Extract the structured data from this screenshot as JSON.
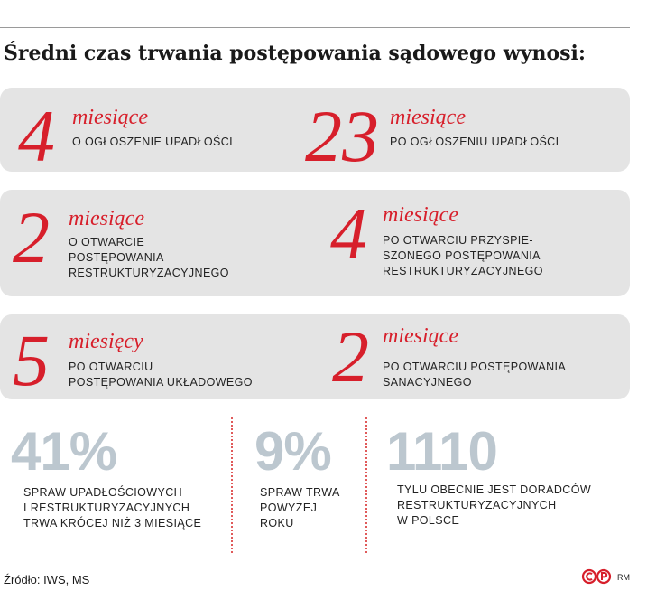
{
  "title": "Średni czas trwania postępowania sądowego wynosi:",
  "chart_data": {
    "type": "table",
    "durations": [
      {
        "value": "4",
        "unit": "miesiące",
        "lines": [
          "o ogłoszenie upadłości"
        ]
      },
      {
        "value": "23",
        "unit": "miesiące",
        "lines": [
          "po ogłoszeniu upadłości"
        ]
      },
      {
        "value": "2",
        "unit": "miesiące",
        "lines": [
          "o otwarcie",
          "postępowania",
          "restrukturyzacyjnego"
        ]
      },
      {
        "value": "4",
        "unit": "miesiące",
        "lines": [
          "po otwarciu przyspie-",
          "szonego postępowania",
          "restrukturyzacyjnego"
        ]
      },
      {
        "value": "5",
        "unit": "miesięcy",
        "lines": [
          "po otwarciu",
          "postępowania układowego"
        ]
      },
      {
        "value": "2",
        "unit": "miesiące",
        "lines": [
          "po otwarciu postępowania",
          "sanacyjnego"
        ]
      }
    ],
    "figures": [
      {
        "value": "41%",
        "lines": [
          "spraw upadłościowych",
          "i restrukturyzacyjnych",
          "trwa krócej niż 3 miesiące"
        ]
      },
      {
        "value": "9%",
        "lines": [
          "spraw trwa",
          "powyżej",
          "roku"
        ]
      },
      {
        "value": "1110",
        "lines": [
          "tylu obecnie jest doradców",
          "restrukturyzacyjnych",
          "w Polsce"
        ]
      }
    ]
  },
  "source": "Źródło: IWS, MS",
  "logo": {
    "text": "RM",
    "icon": "copyright-logo-icon",
    "color": "#d71f2b"
  },
  "colors": {
    "accent": "#d71f2b",
    "panel": "#e4e4e4",
    "figure": "#bcc7cf"
  }
}
